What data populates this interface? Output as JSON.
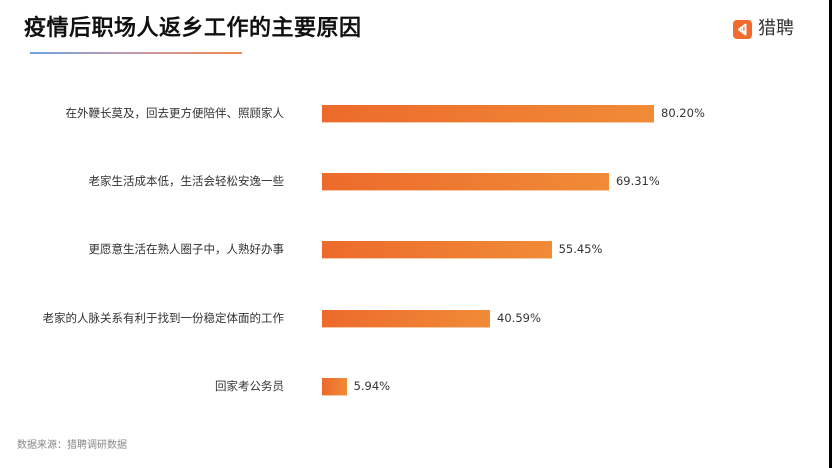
{
  "header": {
    "title": "疫情后职场人返乡工作的主要原因",
    "logo_text": "猎聘",
    "logo_icon": "liepin-logo-icon"
  },
  "colors": {
    "bar_start": "#ed6a2c",
    "bar_end": "#f08b37",
    "underline_start": "#6fa3e0",
    "underline_end": "#f0894a",
    "logo": "#f26a2e"
  },
  "chart_data": {
    "type": "bar",
    "orientation": "horizontal",
    "title": "疫情后职场人返乡工作的主要原因",
    "categories": [
      "在外鞭长莫及，回去更方便陪伴、照顾家人",
      "老家生活成本低，生活会轻松安逸一些",
      "更愿意生活在熟人圈子中，人熟好办事",
      "老家的人脉关系有利于找到一份稳定体面的工作",
      "回家考公务员"
    ],
    "values": [
      80.2,
      69.31,
      55.45,
      40.59,
      5.94
    ],
    "value_labels": [
      "80.20%",
      "69.31%",
      "55.45%",
      "40.59%",
      "5.94%"
    ],
    "unit": "%",
    "xlabel": "",
    "ylabel": "",
    "grid": false,
    "legend": null
  },
  "footer": {
    "source": "数据来源：猎聘调研数据"
  }
}
